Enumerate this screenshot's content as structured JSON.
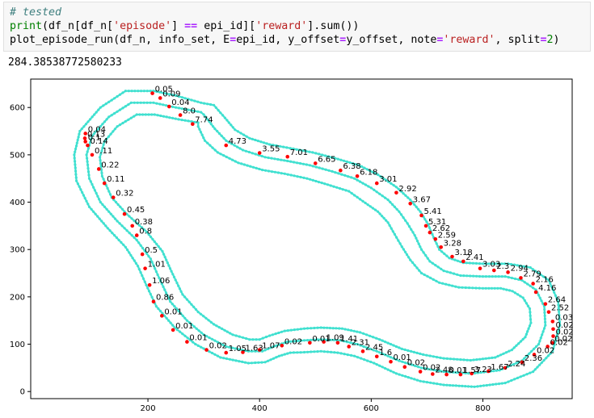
{
  "code": {
    "line1": "# tested",
    "line2": [
      "print",
      "(df_n[df_n[",
      "'episode'",
      "] ",
      "==",
      " epi_id][",
      "'reward'",
      "].sum())"
    ],
    "line3": [
      "plot_episode_run(df_n, info_set, E",
      "=",
      "epi_id, y_offset",
      "=",
      "y_offset, note",
      "=",
      "'reward'",
      ", split",
      "=",
      "2",
      ")"
    ]
  },
  "output_text": "284.38538772580233",
  "chart_data": {
    "type": "scatter",
    "xlim": [
      -10,
      960
    ],
    "ylim": [
      -15,
      660
    ],
    "xticks": [
      200,
      400,
      600,
      800
    ],
    "yticks": [
      0,
      100,
      200,
      300,
      400,
      500,
      600
    ],
    "track_color": "#40e0d0",
    "point_color": "#ff0000",
    "track": {
      "center": [
        [
          295,
          590
        ],
        [
          250,
          600
        ],
        [
          210,
          610
        ],
        [
          170,
          610
        ],
        [
          130,
          580
        ],
        [
          100,
          540
        ],
        [
          90,
          500
        ],
        [
          95,
          450
        ],
        [
          115,
          400
        ],
        [
          145,
          360
        ],
        [
          180,
          320
        ],
        [
          205,
          280
        ],
        [
          220,
          240
        ],
        [
          240,
          190
        ],
        [
          270,
          150
        ],
        [
          300,
          120
        ],
        [
          340,
          95
        ],
        [
          380,
          85
        ],
        [
          405,
          85
        ],
        [
          425,
          95
        ],
        [
          450,
          105
        ],
        [
          480,
          108
        ],
        [
          510,
          110
        ],
        [
          545,
          108
        ],
        [
          575,
          100
        ],
        [
          610,
          85
        ],
        [
          650,
          65
        ],
        [
          690,
          50
        ],
        [
          730,
          42
        ],
        [
          780,
          38
        ],
        [
          830,
          45
        ],
        [
          870,
          65
        ],
        [
          900,
          100
        ],
        [
          912,
          140
        ],
        [
          910,
          180
        ],
        [
          895,
          215
        ],
        [
          870,
          235
        ],
        [
          840,
          243
        ],
        [
          800,
          243
        ],
        [
          760,
          245
        ],
        [
          730,
          255
        ],
        [
          705,
          275
        ],
        [
          690,
          300
        ],
        [
          678,
          330
        ],
        [
          665,
          355
        ],
        [
          650,
          380
        ],
        [
          630,
          405
        ],
        [
          600,
          430
        ],
        [
          570,
          450
        ],
        [
          530,
          465
        ],
        [
          490,
          478
        ],
        [
          450,
          487
        ],
        [
          410,
          495
        ],
        [
          370,
          510
        ],
        [
          340,
          530
        ],
        [
          320,
          555
        ],
        [
          300,
          585
        ]
      ],
      "outer": [
        [
          295,
          610
        ],
        [
          250,
          625
        ],
        [
          210,
          635
        ],
        [
          160,
          635
        ],
        [
          115,
          600
        ],
        [
          78,
          550
        ],
        [
          68,
          500
        ],
        [
          72,
          445
        ],
        [
          95,
          390
        ],
        [
          128,
          345
        ],
        [
          160,
          305
        ],
        [
          182,
          265
        ],
        [
          197,
          225
        ],
        [
          215,
          180
        ],
        [
          248,
          135
        ],
        [
          285,
          100
        ],
        [
          330,
          72
        ],
        [
          380,
          60
        ],
        [
          410,
          62
        ],
        [
          435,
          75
        ],
        [
          455,
          82
        ],
        [
          480,
          83
        ],
        [
          510,
          85
        ],
        [
          540,
          82
        ],
        [
          570,
          75
        ],
        [
          605,
          60
        ],
        [
          645,
          38
        ],
        [
          688,
          22
        ],
        [
          730,
          14
        ],
        [
          785,
          10
        ],
        [
          840,
          18
        ],
        [
          890,
          42
        ],
        [
          925,
          85
        ],
        [
          938,
          140
        ],
        [
          935,
          190
        ],
        [
          918,
          235
        ],
        [
          885,
          262
        ],
        [
          845,
          270
        ],
        [
          800,
          270
        ],
        [
          765,
          272
        ],
        [
          740,
          282
        ],
        [
          722,
          300
        ],
        [
          712,
          325
        ],
        [
          702,
          353
        ],
        [
          688,
          380
        ],
        [
          670,
          405
        ],
        [
          645,
          432
        ],
        [
          612,
          458
        ],
        [
          578,
          478
        ],
        [
          535,
          493
        ],
        [
          495,
          505
        ],
        [
          455,
          514
        ],
        [
          418,
          522
        ],
        [
          382,
          535
        ],
        [
          356,
          553
        ],
        [
          338,
          578
        ],
        [
          318,
          605
        ]
      ],
      "inner": [
        [
          290,
          568
        ],
        [
          255,
          575
        ],
        [
          212,
          585
        ],
        [
          180,
          585
        ],
        [
          145,
          560
        ],
        [
          122,
          528
        ],
        [
          114,
          495
        ],
        [
          118,
          455
        ],
        [
          135,
          410
        ],
        [
          162,
          375
        ],
        [
          198,
          337
        ],
        [
          226,
          296
        ],
        [
          242,
          254
        ],
        [
          262,
          205
        ],
        [
          290,
          168
        ],
        [
          318,
          142
        ],
        [
          352,
          120
        ],
        [
          382,
          110
        ],
        [
          400,
          110
        ],
        [
          418,
          118
        ],
        [
          445,
          128
        ],
        [
          480,
          133
        ],
        [
          510,
          135
        ],
        [
          548,
          133
        ],
        [
          580,
          125
        ],
        [
          615,
          110
        ],
        [
          655,
          90
        ],
        [
          693,
          78
        ],
        [
          730,
          70
        ],
        [
          778,
          66
        ],
        [
          822,
          72
        ],
        [
          852,
          88
        ],
        [
          876,
          115
        ],
        [
          886,
          145
        ],
        [
          884,
          175
        ],
        [
          872,
          198
        ],
        [
          853,
          212
        ],
        [
          832,
          218
        ],
        [
          800,
          218
        ],
        [
          757,
          220
        ],
        [
          722,
          230
        ],
        [
          690,
          250
        ],
        [
          670,
          278
        ],
        [
          655,
          306
        ],
        [
          642,
          332
        ],
        [
          630,
          357
        ],
        [
          612,
          380
        ],
        [
          585,
          402
        ],
        [
          560,
          423
        ],
        [
          522,
          437
        ],
        [
          485,
          450
        ],
        [
          445,
          460
        ],
        [
          405,
          468
        ],
        [
          362,
          483
        ],
        [
          325,
          505
        ],
        [
          302,
          530
        ],
        [
          290,
          560
        ]
      ]
    },
    "points": [
      [
        208,
        630,
        "0.05"
      ],
      [
        222,
        620,
        "0.09"
      ],
      [
        238,
        602,
        "0.04"
      ],
      [
        258,
        584,
        "8.0"
      ],
      [
        280,
        565,
        "7.74"
      ],
      [
        340,
        520,
        "4.73"
      ],
      [
        400,
        504,
        "3.55"
      ],
      [
        450,
        496,
        "7.01"
      ],
      [
        500,
        482,
        "6.65"
      ],
      [
        545,
        467,
        "6.38"
      ],
      [
        575,
        455,
        "6.18"
      ],
      [
        610,
        440,
        "3.01"
      ],
      [
        645,
        420,
        "2.92"
      ],
      [
        670,
        397,
        "3.67"
      ],
      [
        690,
        372,
        "5.41"
      ],
      [
        698,
        350,
        "5.31"
      ],
      [
        705,
        336,
        "2.62"
      ],
      [
        715,
        322,
        "2.59"
      ],
      [
        725,
        305,
        "3.28"
      ],
      [
        745,
        285,
        "3.18"
      ],
      [
        765,
        275,
        "2.41"
      ],
      [
        795,
        260,
        "3.03"
      ],
      [
        820,
        256,
        "2.3"
      ],
      [
        845,
        252,
        "2.94"
      ],
      [
        868,
        240,
        "2.79"
      ],
      [
        890,
        228,
        "2.16"
      ],
      [
        895,
        210,
        "4.16"
      ],
      [
        912,
        185,
        "2.64"
      ],
      [
        918,
        168,
        "2.52"
      ],
      [
        925,
        148,
        "0.03"
      ],
      [
        926,
        132,
        "0.02"
      ],
      [
        926,
        117,
        "0.02"
      ],
      [
        924,
        103,
        "0.02"
      ],
      [
        916,
        95,
        "0.02"
      ],
      [
        892,
        78,
        "0.02"
      ],
      [
        870,
        62,
        "2.36"
      ],
      [
        840,
        50,
        "2.24"
      ],
      [
        810,
        43,
        "1.67"
      ],
      [
        780,
        38,
        "3.23"
      ],
      [
        760,
        36,
        "1.57"
      ],
      [
        735,
        36,
        "0.01"
      ],
      [
        710,
        37,
        "2.48"
      ],
      [
        688,
        42,
        "0.02"
      ],
      [
        660,
        52,
        "0.02"
      ],
      [
        635,
        63,
        "0.01"
      ],
      [
        610,
        74,
        "1.6"
      ],
      [
        585,
        85,
        "2.45"
      ],
      [
        560,
        95,
        "2.31"
      ],
      [
        540,
        103,
        "1.41"
      ],
      [
        515,
        105,
        "1.09"
      ],
      [
        490,
        103,
        "0.01"
      ],
      [
        440,
        97,
        "0.02"
      ],
      [
        400,
        88,
        "1.07"
      ],
      [
        370,
        83,
        "1.63"
      ],
      [
        340,
        82,
        "1.05"
      ],
      [
        305,
        88,
        "0.02"
      ],
      [
        270,
        105,
        "0.01"
      ],
      [
        245,
        130,
        "0.01"
      ],
      [
        225,
        160,
        "0.01"
      ],
      [
        210,
        190,
        "0.86"
      ],
      [
        203,
        225,
        "1.06"
      ],
      [
        195,
        260,
        "1.01"
      ],
      [
        190,
        290,
        "0.5"
      ],
      [
        180,
        330,
        "0.8"
      ],
      [
        172,
        350,
        "0.38"
      ],
      [
        158,
        375,
        "0.45"
      ],
      [
        138,
        410,
        "0.32"
      ],
      [
        122,
        440,
        "0.11"
      ],
      [
        112,
        470,
        "0.22"
      ],
      [
        100,
        500,
        "0.11"
      ],
      [
        92,
        520,
        "0.14"
      ],
      [
        88,
        528,
        "0.1"
      ],
      [
        87,
        535,
        "0.13"
      ],
      [
        88,
        545,
        "0.04"
      ]
    ]
  }
}
